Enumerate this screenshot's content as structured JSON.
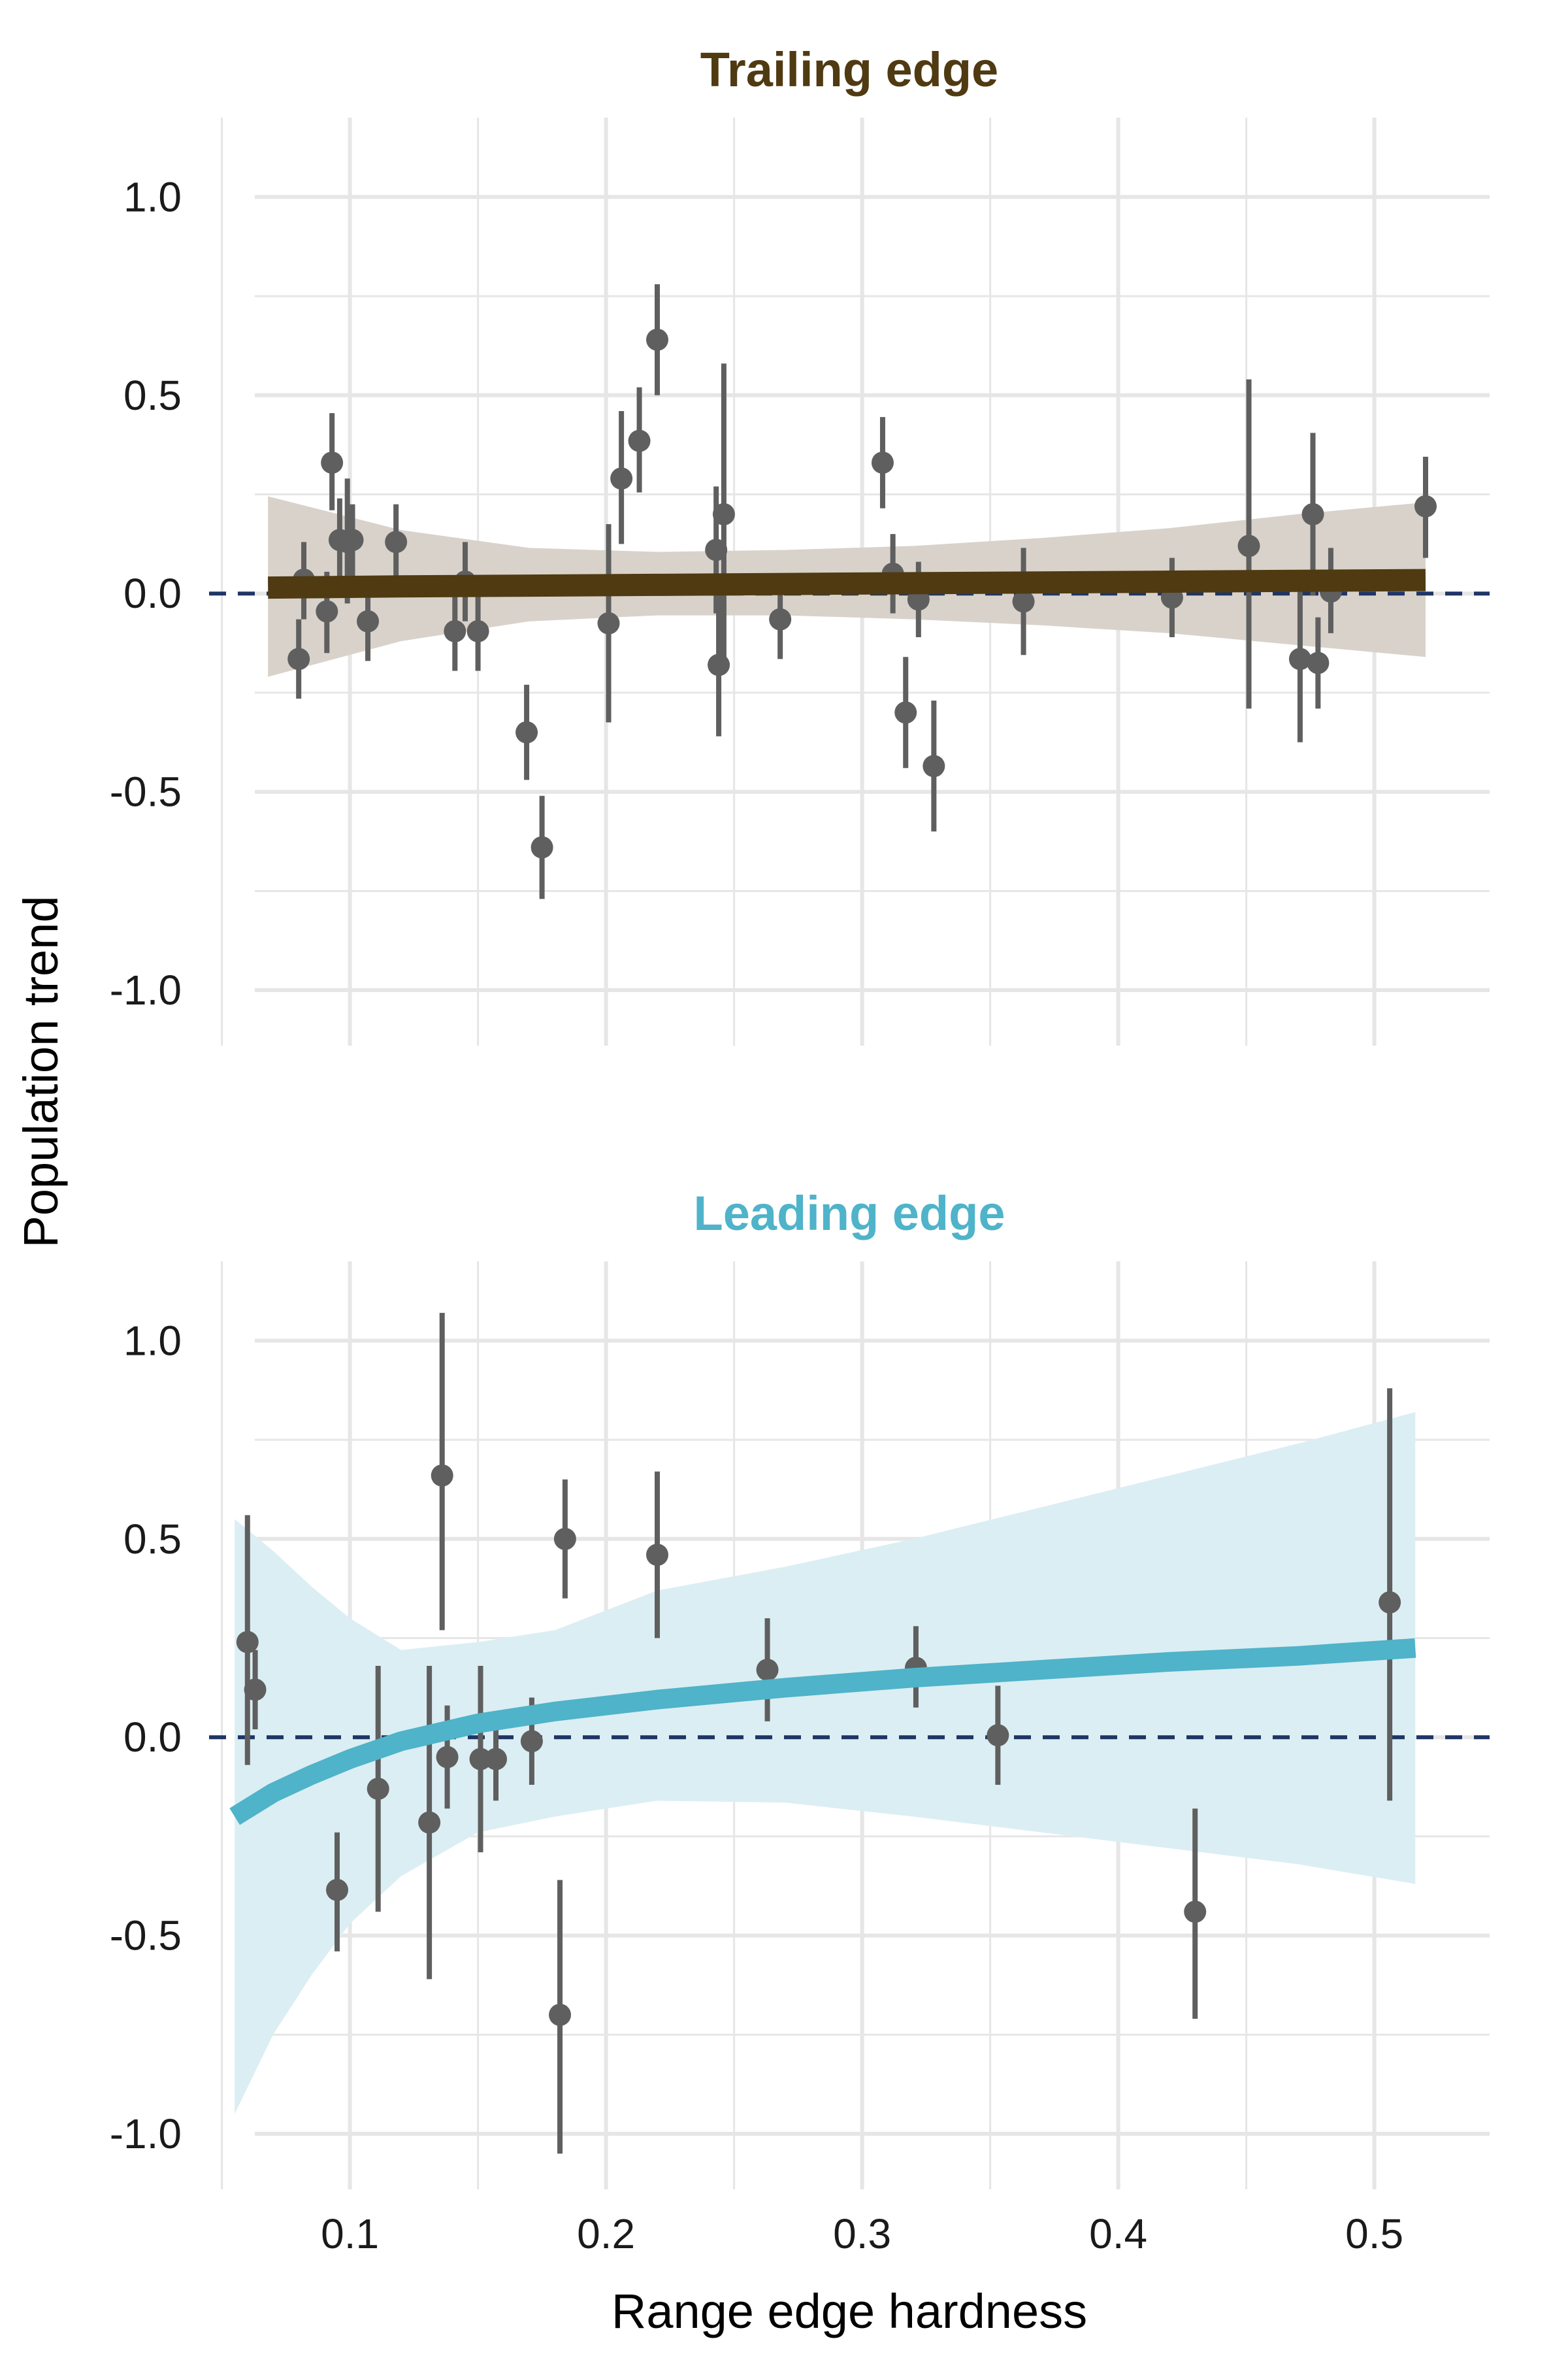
{
  "ylabel": "Population trend",
  "xlabel": "Range edge hardness",
  "colors": {
    "trailing": "#4f3a12",
    "trailing_band": "#d8d2ca",
    "leading": "#4fb3c9",
    "leading_band": "#dbeef3",
    "points": "#5f5f5f",
    "zero_line": "#1f3566",
    "grid": "#e6e6e6"
  },
  "chart_data": [
    {
      "type": "scatter",
      "title": "Trailing edge",
      "xlabel": "Range edge hardness",
      "ylabel": "Population trend",
      "xlim": [
        0.045,
        0.545
      ],
      "ylim": [
        -1.14,
        1.2
      ],
      "x_ticks": [
        0.1,
        0.2,
        0.3,
        0.4,
        0.5
      ],
      "x_tick_labels": [
        "0.1",
        "0.2",
        "0.3",
        "0.4",
        "0.5"
      ],
      "y_ticks": [
        1.0,
        0.5,
        0.0,
        -0.5,
        -1.0
      ],
      "y_tick_labels": [
        "1.0",
        "0.5",
        "0.0",
        "-0.5",
        "-1.0"
      ],
      "grid": true,
      "reference_line": 0.0,
      "points": [
        {
          "x": 0.08,
          "y": -0.165,
          "lo": -0.265,
          "hi": -0.065
        },
        {
          "x": 0.082,
          "y": 0.035,
          "lo": -0.065,
          "hi": 0.13
        },
        {
          "x": 0.091,
          "y": -0.045,
          "lo": -0.15,
          "hi": 0.055
        },
        {
          "x": 0.093,
          "y": 0.33,
          "lo": 0.21,
          "hi": 0.455
        },
        {
          "x": 0.096,
          "y": 0.135,
          "lo": 0.03,
          "hi": 0.24
        },
        {
          "x": 0.099,
          "y": 0.13,
          "lo": -0.025,
          "hi": 0.29
        },
        {
          "x": 0.101,
          "y": 0.135,
          "lo": 0.04,
          "hi": 0.225
        },
        {
          "x": 0.107,
          "y": -0.07,
          "lo": -0.17,
          "hi": 0.03
        },
        {
          "x": 0.118,
          "y": 0.13,
          "lo": 0.035,
          "hi": 0.225
        },
        {
          "x": 0.141,
          "y": -0.095,
          "lo": -0.195,
          "hi": 0.005
        },
        {
          "x": 0.145,
          "y": 0.03,
          "lo": -0.07,
          "hi": 0.13
        },
        {
          "x": 0.15,
          "y": -0.095,
          "lo": -0.195,
          "hi": 0.005
        },
        {
          "x": 0.169,
          "y": -0.35,
          "lo": -0.47,
          "hi": -0.23
        },
        {
          "x": 0.175,
          "y": -0.64,
          "lo": -0.77,
          "hi": -0.51
        },
        {
          "x": 0.201,
          "y": -0.075,
          "lo": -0.325,
          "hi": 0.175
        },
        {
          "x": 0.206,
          "y": 0.29,
          "lo": 0.125,
          "hi": 0.46
        },
        {
          "x": 0.213,
          "y": 0.385,
          "lo": 0.255,
          "hi": 0.52
        },
        {
          "x": 0.22,
          "y": 0.64,
          "lo": 0.5,
          "hi": 0.78
        },
        {
          "x": 0.243,
          "y": 0.11,
          "lo": -0.05,
          "hi": 0.27
        },
        {
          "x": 0.244,
          "y": -0.18,
          "lo": -0.36,
          "hi": 0.0
        },
        {
          "x": 0.246,
          "y": 0.2,
          "lo": -0.18,
          "hi": 0.58
        },
        {
          "x": 0.268,
          "y": -0.065,
          "lo": -0.165,
          "hi": 0.035
        },
        {
          "x": 0.308,
          "y": 0.33,
          "lo": 0.215,
          "hi": 0.445
        },
        {
          "x": 0.312,
          "y": 0.05,
          "lo": -0.05,
          "hi": 0.15
        },
        {
          "x": 0.317,
          "y": -0.3,
          "lo": -0.44,
          "hi": -0.16
        },
        {
          "x": 0.322,
          "y": -0.015,
          "lo": -0.11,
          "hi": 0.08
        },
        {
          "x": 0.328,
          "y": -0.435,
          "lo": -0.6,
          "hi": -0.27
        },
        {
          "x": 0.363,
          "y": -0.02,
          "lo": -0.155,
          "hi": 0.115
        },
        {
          "x": 0.421,
          "y": -0.01,
          "lo": -0.11,
          "hi": 0.09
        },
        {
          "x": 0.451,
          "y": 0.12,
          "lo": -0.29,
          "hi": 0.54
        },
        {
          "x": 0.471,
          "y": -0.165,
          "lo": -0.375,
          "hi": 0.045
        },
        {
          "x": 0.476,
          "y": 0.2,
          "lo": -0.005,
          "hi": 0.405
        },
        {
          "x": 0.478,
          "y": -0.175,
          "lo": -0.29,
          "hi": -0.06
        },
        {
          "x": 0.483,
          "y": 0.005,
          "lo": -0.1,
          "hi": 0.115
        },
        {
          "x": 0.52,
          "y": 0.22,
          "lo": 0.09,
          "hi": 0.345
        }
      ],
      "fit": {
        "x": [
          0.068,
          0.12,
          0.17,
          0.22,
          0.27,
          0.32,
          0.37,
          0.42,
          0.47,
          0.52
        ],
        "y": [
          0.015,
          0.018,
          0.02,
          0.022,
          0.024,
          0.026,
          0.028,
          0.03,
          0.032,
          0.034
        ],
        "lower": [
          -0.21,
          -0.12,
          -0.07,
          -0.055,
          -0.055,
          -0.065,
          -0.08,
          -0.1,
          -0.13,
          -0.16
        ],
        "upper": [
          0.245,
          0.16,
          0.115,
          0.105,
          0.11,
          0.12,
          0.14,
          0.165,
          0.2,
          0.23
        ]
      }
    },
    {
      "type": "scatter",
      "title": "Leading edge",
      "xlabel": "Range edge hardness",
      "ylabel": "Population trend",
      "xlim": [
        0.045,
        0.545
      ],
      "ylim": [
        -1.14,
        1.2
      ],
      "x_ticks": [
        0.1,
        0.2,
        0.3,
        0.4,
        0.5
      ],
      "x_tick_labels": [
        "0.1",
        "0.2",
        "0.3",
        "0.4",
        "0.5"
      ],
      "y_ticks": [
        1.0,
        0.5,
        0.0,
        -0.5,
        -1.0
      ],
      "y_tick_labels": [
        "1.0",
        "0.5",
        "0.0",
        "-0.5",
        "-1.0"
      ],
      "grid": true,
      "reference_line": 0.0,
      "points": [
        {
          "x": 0.06,
          "y": 0.24,
          "lo": -0.07,
          "hi": 0.56
        },
        {
          "x": 0.063,
          "y": 0.12,
          "lo": 0.02,
          "hi": 0.22
        },
        {
          "x": 0.095,
          "y": -0.385,
          "lo": -0.54,
          "hi": -0.24
        },
        {
          "x": 0.111,
          "y": -0.13,
          "lo": -0.44,
          "hi": 0.18
        },
        {
          "x": 0.131,
          "y": -0.215,
          "lo": -0.61,
          "hi": 0.18
        },
        {
          "x": 0.136,
          "y": 0.66,
          "lo": 0.27,
          "hi": 1.07
        },
        {
          "x": 0.138,
          "y": -0.05,
          "lo": -0.18,
          "hi": 0.08
        },
        {
          "x": 0.151,
          "y": -0.055,
          "lo": -0.29,
          "hi": 0.18
        },
        {
          "x": 0.157,
          "y": -0.055,
          "lo": -0.16,
          "hi": 0.05
        },
        {
          "x": 0.171,
          "y": -0.01,
          "lo": -0.12,
          "hi": 0.1
        },
        {
          "x": 0.182,
          "y": -0.7,
          "lo": -1.05,
          "hi": -0.36
        },
        {
          "x": 0.184,
          "y": 0.5,
          "lo": 0.35,
          "hi": 0.65
        },
        {
          "x": 0.22,
          "y": 0.46,
          "lo": 0.25,
          "hi": 0.67
        },
        {
          "x": 0.263,
          "y": 0.17,
          "lo": 0.04,
          "hi": 0.3
        },
        {
          "x": 0.321,
          "y": 0.175,
          "lo": 0.075,
          "hi": 0.28
        },
        {
          "x": 0.353,
          "y": 0.005,
          "lo": -0.12,
          "hi": 0.13
        },
        {
          "x": 0.43,
          "y": -0.44,
          "lo": -0.71,
          "hi": -0.18
        },
        {
          "x": 0.506,
          "y": 0.34,
          "lo": -0.16,
          "hi": 0.88
        }
      ],
      "fit": {
        "x": [
          0.055,
          0.07,
          0.085,
          0.1,
          0.12,
          0.15,
          0.18,
          0.22,
          0.27,
          0.32,
          0.37,
          0.42,
          0.47,
          0.516
        ],
        "y": [
          -0.2,
          -0.14,
          -0.095,
          -0.055,
          -0.01,
          0.035,
          0.065,
          0.095,
          0.125,
          0.15,
          0.17,
          0.19,
          0.205,
          0.225
        ],
        "lower": [
          -0.95,
          -0.75,
          -0.6,
          -0.47,
          -0.35,
          -0.24,
          -0.2,
          -0.16,
          -0.165,
          -0.2,
          -0.24,
          -0.28,
          -0.32,
          -0.37
        ],
        "upper": [
          0.55,
          0.47,
          0.38,
          0.3,
          0.22,
          0.24,
          0.27,
          0.37,
          0.43,
          0.5,
          0.58,
          0.66,
          0.74,
          0.82
        ]
      }
    }
  ]
}
